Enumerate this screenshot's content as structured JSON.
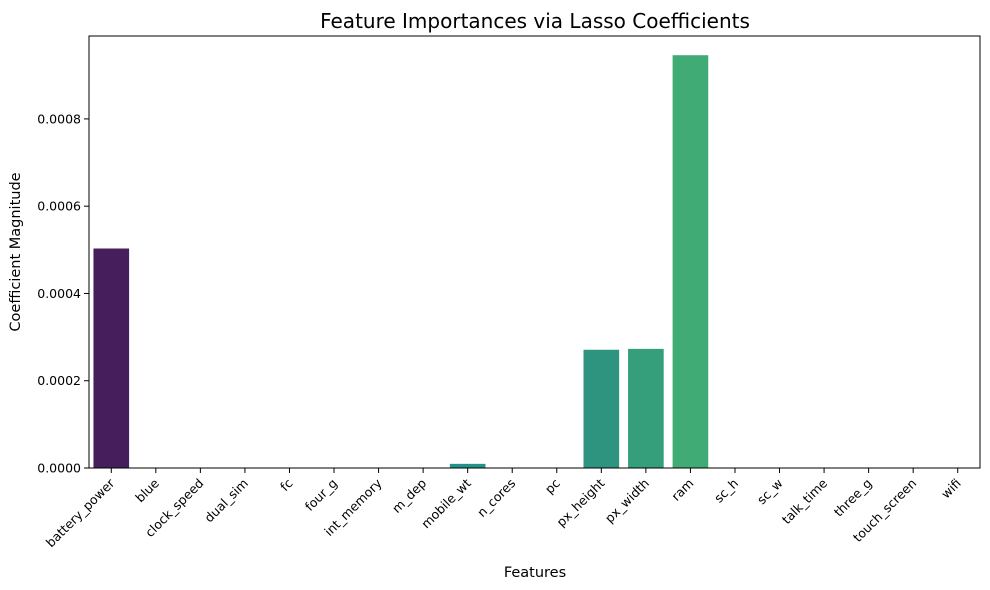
{
  "chart_data": {
    "type": "bar",
    "title": "Feature Importances via Lasso Coefficients",
    "xlabel": "Features",
    "ylabel": "Coefficient Magnitude",
    "categories": [
      "battery_power",
      "blue",
      "clock_speed",
      "dual_sim",
      "fc",
      "four_g",
      "int_memory",
      "m_dep",
      "mobile_wt",
      "n_cores",
      "pc",
      "px_height",
      "px_width",
      "ram",
      "sc_h",
      "sc_w",
      "talk_time",
      "three_g",
      "touch_screen",
      "wifi"
    ],
    "values": [
      0.000503,
      0,
      0,
      0,
      0,
      0,
      0,
      0,
      9.5e-06,
      0,
      0,
      0.000271,
      0.000273,
      0.000946,
      0,
      0,
      0,
      0,
      0,
      0
    ],
    "ylim": [
      0,
      0.00099
    ],
    "yticks": [
      0,
      0.0002,
      0.0004,
      0.0006,
      0.0008
    ],
    "ytick_labels": [
      "0.0000",
      "0.0002",
      "0.0004",
      "0.0006",
      "0.0008"
    ],
    "colors": [
      "#471e5c",
      "#4a2b7a",
      "#463c84",
      "#3f4d8a",
      "#375c8d",
      "#306b8e",
      "#2b798e",
      "#26868d",
      "#22938b",
      "#21a086",
      "#2e917f",
      "#2e937f",
      "#359e7b",
      "#40ab75",
      "#55b86a",
      "#72c35b",
      "#92cd4b",
      "#b4d63a",
      "#d6dd2c",
      "#f6e32a"
    ],
    "grid": false,
    "legend": "none"
  }
}
